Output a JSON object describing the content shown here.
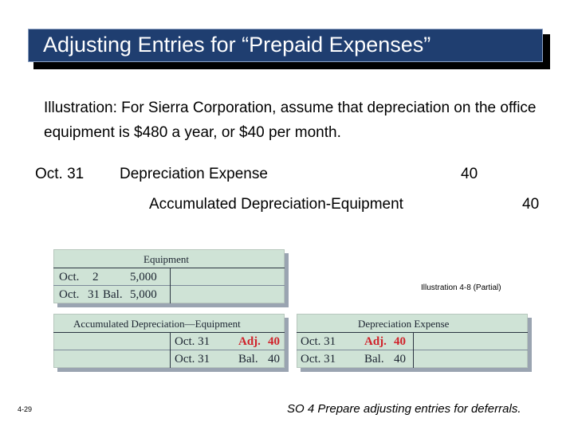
{
  "title": "Adjusting Entries for “Prepaid Expenses”",
  "illustration": {
    "label": "Illustration:",
    "text": "For Sierra Corporation, assume that depreciation on the office equipment is $480 a year, or $40 per month."
  },
  "journal_entry": {
    "date": "Oct. 31",
    "debit_account": "Depreciation Expense",
    "debit_amount": "40",
    "credit_account": "Accumulated Depreciation-Equipment",
    "credit_amount": "40"
  },
  "t_accounts": {
    "equipment": {
      "title": "Equipment",
      "rows": [
        {
          "date": "Oct.",
          "day": "2",
          "desc": "",
          "amount": "5,000"
        },
        {
          "date": "Oct.",
          "day": "31",
          "desc": "Bal.",
          "amount": "5,000"
        }
      ]
    },
    "accumulated_depreciation": {
      "title": "Accumulated Depreciation—Equipment",
      "rows": [
        {
          "date": "Oct. 31",
          "desc": "Adj.",
          "amount": "40",
          "highlight": true
        },
        {
          "date": "Oct. 31",
          "desc": "Bal.",
          "amount": "40",
          "highlight": false
        }
      ]
    },
    "depreciation_expense": {
      "title": "Depreciation Expense",
      "rows": [
        {
          "date": "Oct. 31",
          "desc": "Adj.",
          "amount": "40",
          "highlight": true
        },
        {
          "date": "Oct. 31",
          "desc": "Bal.",
          "amount": "40",
          "highlight": false
        }
      ]
    }
  },
  "illustration_ref": "Illustration 4-8 (Partial)",
  "page_number": "4-29",
  "study_objective": "SO 4  Prepare adjusting entries for deferrals.",
  "colors": {
    "title_bg": "#1f3e70",
    "ledger_bg": "#cfe3d6",
    "adj_red": "#d0222a"
  }
}
